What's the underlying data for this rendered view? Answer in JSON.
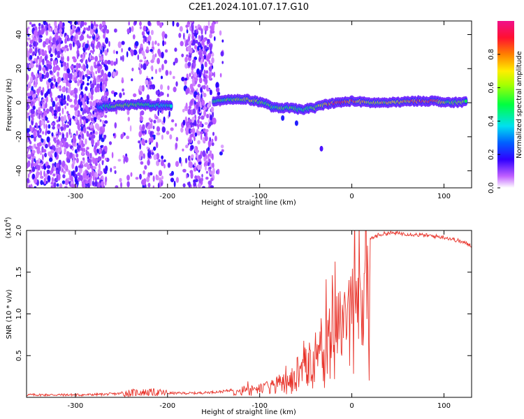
{
  "title": "C2E1.2024.101.07.17.G10",
  "colors": {
    "snr_line": "#e8332a",
    "axis": "#000000"
  },
  "chart_data": [
    {
      "type": "heatmap",
      "xlabel": "Height of straight line (km)",
      "ylabel": "Frequency (Hz)",
      "xlim": [
        -353,
        130
      ],
      "ylim": [
        -50,
        48
      ],
      "x_ticks": [
        -300,
        -200,
        -100,
        0,
        100
      ],
      "x_tick_labels": [
        "-300",
        "-200",
        "-100",
        "0",
        "100"
      ],
      "y_ticks": [
        -40,
        -20,
        0,
        20,
        40
      ],
      "y_tick_labels": [
        "-40",
        "-20",
        "0",
        "20",
        "40"
      ],
      "colorbar": {
        "label": "Normalized spectral amplitude",
        "range": [
          0,
          1
        ],
        "ticks": [
          0.0,
          0.2,
          0.4,
          0.6,
          0.8
        ],
        "tick_labels": [
          "0.0",
          "0.2",
          "0.4",
          "0.6",
          "0.8"
        ],
        "colormap": "rainbow (white-purple-blue-cyan-green-yellow-red-magenta)"
      },
      "noise_regions": [
        {
          "x_range": [
            -353,
            -265
          ],
          "density": "high"
        },
        {
          "x_range": [
            -265,
            -230
          ],
          "density": "low"
        },
        {
          "x_range": [
            -230,
            -205
          ],
          "density": "medium"
        },
        {
          "x_range": [
            -205,
            -180
          ],
          "density": "low"
        },
        {
          "x_range": [
            -180,
            -150
          ],
          "density": "high"
        },
        {
          "x_range": [
            -150,
            -140
          ],
          "density": "low"
        }
      ],
      "signal_track": [
        {
          "x": -275,
          "f": -2.5,
          "a": 0.35
        },
        {
          "x": -260,
          "f": -2,
          "a": 0.6
        },
        {
          "x": -245,
          "f": -1.5,
          "a": 0.65
        },
        {
          "x": -230,
          "f": -1,
          "a": 0.6
        },
        {
          "x": -215,
          "f": -1.5,
          "a": 0.5
        },
        {
          "x": -195,
          "f": -2,
          "a": 0.45
        },
        {
          "x": -150,
          "f": 1,
          "a": 0.5
        },
        {
          "x": -135,
          "f": 2,
          "a": 0.6
        },
        {
          "x": -115,
          "f": 2,
          "a": 0.7
        },
        {
          "x": -95,
          "f": 0,
          "a": 0.6
        },
        {
          "x": -85,
          "f": -3,
          "a": 0.55
        },
        {
          "x": -70,
          "f": -3,
          "a": 0.6
        },
        {
          "x": -55,
          "f": -4,
          "a": 0.55
        },
        {
          "x": -40,
          "f": -3,
          "a": 0.6
        },
        {
          "x": -30,
          "f": -1,
          "a": 0.85
        },
        {
          "x": -15,
          "f": 0,
          "a": 0.95
        },
        {
          "x": 0,
          "f": 1,
          "a": 0.9
        },
        {
          "x": 20,
          "f": 0,
          "a": 0.7
        },
        {
          "x": 40,
          "f": 0,
          "a": 0.75
        },
        {
          "x": 55,
          "f": 0.5,
          "a": 0.8
        },
        {
          "x": 70,
          "f": 1,
          "a": 0.95
        },
        {
          "x": 90,
          "f": 1,
          "a": 0.95
        },
        {
          "x": 105,
          "f": 0,
          "a": 0.6
        },
        {
          "x": 125,
          "f": 0.5,
          "a": 0.65
        }
      ],
      "outlier_points": [
        {
          "x": -33,
          "f": -27,
          "a": 0.15
        },
        {
          "x": -75,
          "f": -9,
          "a": 0.2
        },
        {
          "x": -60,
          "f": -12,
          "a": 0.2
        }
      ]
    },
    {
      "type": "line",
      "xlabel": "Height of straight line (km)",
      "ylabel": "SNR (10 * v/v)",
      "y_multiplier_label": "(x10",
      "y_multiplier_exp": "4",
      "y_multiplier_close": ")",
      "xlim": [
        -353,
        130
      ],
      "ylim": [
        0,
        2.0
      ],
      "x_ticks": [
        -300,
        -200,
        -100,
        0,
        100
      ],
      "x_tick_labels": [
        "-300",
        "-200",
        "-100",
        "0",
        "100"
      ],
      "y_ticks": [
        0.5,
        1.0,
        1.5,
        2.0
      ],
      "y_tick_labels": [
        "0.5",
        "1.0",
        "1.5",
        "2.0"
      ],
      "series": [
        {
          "x": [
            -353,
            -320,
            -290,
            -260,
            -230,
            -215,
            -200,
            -170,
            -140,
            -125,
            -115,
            -105,
            -95,
            -85,
            -75,
            -65,
            -55,
            -48,
            -40,
            -35,
            -30,
            -25,
            -20,
            -15,
            -10,
            -5,
            0,
            5,
            10,
            20,
            30,
            40,
            60,
            80,
            100,
            115,
            130
          ],
          "y": [
            0.03,
            0.03,
            0.03,
            0.04,
            0.06,
            0.06,
            0.05,
            0.05,
            0.07,
            0.1,
            0.15,
            0.14,
            0.18,
            0.22,
            0.28,
            0.35,
            0.48,
            0.65,
            0.75,
            0.9,
            1.05,
            1.15,
            1.2,
            1.25,
            1.35,
            1.45,
            1.55,
            1.6,
            1.75,
            1.9,
            1.95,
            1.97,
            1.96,
            1.94,
            1.92,
            1.88,
            1.82
          ]
        }
      ]
    }
  ]
}
